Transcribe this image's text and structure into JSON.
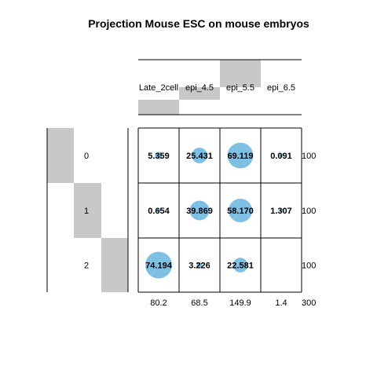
{
  "chart_data": {
    "type": "balloon-table",
    "title": "Projection Mouse ESC on mouse embryos",
    "columns": [
      "Late_2cell",
      "epi_4.5",
      "epi_5.5",
      "epi_6.5"
    ],
    "column_totals": [
      "80.2",
      "68.5",
      "149.9",
      "1.4"
    ],
    "grand_total": "300",
    "column_bar_fraction": [
      0.4,
      0.4,
      1.0,
      0.0
    ],
    "rows": [
      {
        "label": "0",
        "total": "100",
        "values": [
          5.359,
          25.431,
          69.119,
          0.091
        ],
        "value_labels": [
          "5.359",
          "25.431",
          "69.119",
          "0.091"
        ]
      },
      {
        "label": "1",
        "total": "100",
        "values": [
          0.654,
          39.869,
          58.17,
          1.307
        ],
        "value_labels": [
          "0.654",
          "39.869",
          "58.170",
          "1.307"
        ]
      },
      {
        "label": "2",
        "total": "100",
        "values": [
          74.194,
          3.226,
          22.581,
          null
        ],
        "value_labels": [
          "74.194",
          "3.226",
          "22.581",
          ""
        ]
      }
    ],
    "bubble_color": "#7ec0e4",
    "bar_color": "#c8c8c8",
    "max_value": 74.194
  }
}
